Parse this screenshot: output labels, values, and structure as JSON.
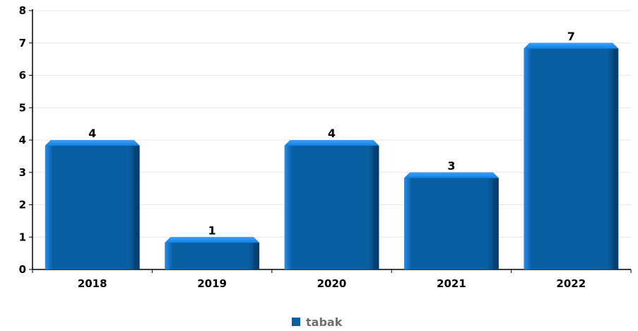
{
  "chart_data": {
    "type": "bar",
    "title": "",
    "xlabel": "",
    "ylabel": "",
    "categories": [
      "2018",
      "2019",
      "2020",
      "2021",
      "2022"
    ],
    "series": [
      {
        "name": "tabak",
        "values": [
          4,
          1,
          4,
          3,
          7
        ],
        "color": "#0a5fa3"
      }
    ],
    "ylim": [
      0,
      8
    ],
    "yticks": [
      "0",
      "1",
      "2",
      "3",
      "4",
      "5",
      "6",
      "7",
      "8"
    ],
    "data_labels": [
      "4",
      "1",
      "4",
      "3",
      "7"
    ],
    "grid": true,
    "legend_position": "bottom-center"
  },
  "colors": {
    "bar_main": "#0a5fa3",
    "bar_highlight": "#1e90ff",
    "bar_shadow": "#063d6b",
    "grid": "#e6e6e6",
    "axis": "#000000",
    "legend_text": "#6e6e6e"
  }
}
